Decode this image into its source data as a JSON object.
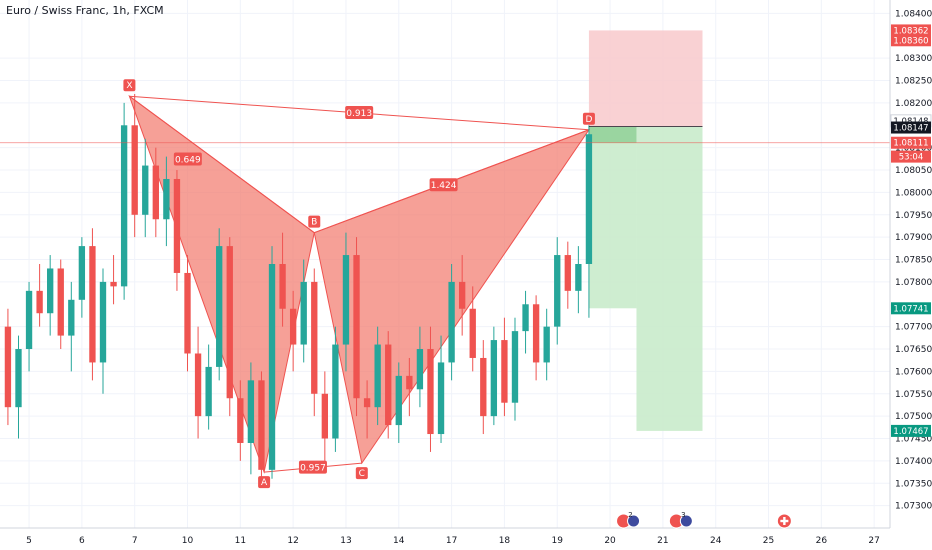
{
  "header": {
    "symbol_title": "Euro / Swiss Franc, 1h, FXCM"
  },
  "colors": {
    "up": "#26a69a",
    "down": "#ef5350",
    "pattern_fill": "#f2786b",
    "pattern_line": "#ef5350",
    "stop_zone": "#f8c9cb",
    "target_zone": "#c9ebcb",
    "entry_zone": "#9ad5a0",
    "grid": "#f0f3fa"
  },
  "chart_data": {
    "type": "candlestick",
    "title": "Euro / Swiss Franc, 1h, FXCM",
    "ylim": [
      1.0725,
      1.0843
    ],
    "y_ticks": [
      "1.08400",
      "1.08300",
      "1.08250",
      "1.08200",
      "1.08100",
      "1.08050",
      "1.08000",
      "1.07950",
      "1.07900",
      "1.07850",
      "1.07800",
      "1.07700",
      "1.07650",
      "1.07600",
      "1.07550",
      "1.07500",
      "1.07450",
      "1.07400",
      "1.07350",
      "1.07300"
    ],
    "x_ticks": [
      {
        "label": "5",
        "x": 5
      },
      {
        "label": "6",
        "x": 6
      },
      {
        "label": "7",
        "x": 7
      },
      {
        "label": "10",
        "x": 8
      },
      {
        "label": "11",
        "x": 9
      },
      {
        "label": "12",
        "x": 10
      },
      {
        "label": "13",
        "x": 11
      },
      {
        "label": "14",
        "x": 12
      },
      {
        "label": "17",
        "x": 13
      },
      {
        "label": "18",
        "x": 14
      },
      {
        "label": "19",
        "x": 15
      },
      {
        "label": "20",
        "x": 16
      },
      {
        "label": "21",
        "x": 17
      },
      {
        "label": "24",
        "x": 18
      },
      {
        "label": "25",
        "x": 19
      },
      {
        "label": "26",
        "x": 20
      },
      {
        "label": "27",
        "x": 21
      }
    ],
    "grid": true,
    "candles": [
      {
        "d": 4.6,
        "o": 1.077,
        "h": 1.0774,
        "l": 1.0748,
        "c": 1.0752
      },
      {
        "d": 4.8,
        "o": 1.0752,
        "h": 1.0768,
        "l": 1.0745,
        "c": 1.0765
      },
      {
        "d": 5.0,
        "o": 1.0765,
        "h": 1.078,
        "l": 1.076,
        "c": 1.0778
      },
      {
        "d": 5.2,
        "o": 1.0778,
        "h": 1.0784,
        "l": 1.077,
        "c": 1.0773
      },
      {
        "d": 5.4,
        "o": 1.0773,
        "h": 1.0786,
        "l": 1.0768,
        "c": 1.0783
      },
      {
        "d": 5.6,
        "o": 1.0783,
        "h": 1.0785,
        "l": 1.0765,
        "c": 1.0768
      },
      {
        "d": 5.8,
        "o": 1.0768,
        "h": 1.078,
        "l": 1.076,
        "c": 1.0776
      },
      {
        "d": 6.0,
        "o": 1.0776,
        "h": 1.079,
        "l": 1.0772,
        "c": 1.0788
      },
      {
        "d": 6.2,
        "o": 1.0788,
        "h": 1.0792,
        "l": 1.0758,
        "c": 1.0762
      },
      {
        "d": 6.4,
        "o": 1.0762,
        "h": 1.0783,
        "l": 1.0755,
        "c": 1.078
      },
      {
        "d": 6.6,
        "o": 1.078,
        "h": 1.0786,
        "l": 1.0775,
        "c": 1.0779
      },
      {
        "d": 6.8,
        "o": 1.0779,
        "h": 1.082,
        "l": 1.0776,
        "c": 1.0815
      },
      {
        "d": 7.0,
        "o": 1.0815,
        "h": 1.0822,
        "l": 1.079,
        "c": 1.0795
      },
      {
        "d": 7.2,
        "o": 1.0795,
        "h": 1.0812,
        "l": 1.079,
        "c": 1.0806
      },
      {
        "d": 7.4,
        "o": 1.0806,
        "h": 1.081,
        "l": 1.079,
        "c": 1.0794
      },
      {
        "d": 7.6,
        "o": 1.0794,
        "h": 1.0808,
        "l": 1.0788,
        "c": 1.0803
      },
      {
        "d": 7.8,
        "o": 1.0803,
        "h": 1.0805,
        "l": 1.0778,
        "c": 1.0782
      },
      {
        "d": 8.0,
        "o": 1.0782,
        "h": 1.0786,
        "l": 1.076,
        "c": 1.0764
      },
      {
        "d": 8.2,
        "o": 1.0764,
        "h": 1.077,
        "l": 1.0745,
        "c": 1.075
      },
      {
        "d": 8.4,
        "o": 1.075,
        "h": 1.0766,
        "l": 1.0747,
        "c": 1.0761
      },
      {
        "d": 8.6,
        "o": 1.0761,
        "h": 1.0792,
        "l": 1.0758,
        "c": 1.0788
      },
      {
        "d": 8.8,
        "o": 1.0788,
        "h": 1.079,
        "l": 1.075,
        "c": 1.0754
      },
      {
        "d": 9.0,
        "o": 1.0754,
        "h": 1.0758,
        "l": 1.074,
        "c": 1.0744
      },
      {
        "d": 9.2,
        "o": 1.0744,
        "h": 1.0762,
        "l": 1.0737,
        "c": 1.0758
      },
      {
        "d": 9.4,
        "o": 1.0758,
        "h": 1.076,
        "l": 1.0735,
        "c": 1.0738
      },
      {
        "d": 9.6,
        "o": 1.0738,
        "h": 1.0788,
        "l": 1.0736,
        "c": 1.0784
      },
      {
        "d": 9.8,
        "o": 1.0784,
        "h": 1.0791,
        "l": 1.077,
        "c": 1.0774
      },
      {
        "d": 10.0,
        "o": 1.0774,
        "h": 1.0778,
        "l": 1.076,
        "c": 1.0766
      },
      {
        "d": 10.2,
        "o": 1.0766,
        "h": 1.0785,
        "l": 1.0762,
        "c": 1.078
      },
      {
        "d": 10.4,
        "o": 1.078,
        "h": 1.0783,
        "l": 1.075,
        "c": 1.0755
      },
      {
        "d": 10.6,
        "o": 1.0755,
        "h": 1.076,
        "l": 1.074,
        "c": 1.0745
      },
      {
        "d": 10.8,
        "o": 1.0745,
        "h": 1.077,
        "l": 1.0742,
        "c": 1.0766
      },
      {
        "d": 11.0,
        "o": 1.0766,
        "h": 1.0791,
        "l": 1.076,
        "c": 1.0786
      },
      {
        "d": 11.2,
        "o": 1.0786,
        "h": 1.079,
        "l": 1.075,
        "c": 1.0754
      },
      {
        "d": 11.4,
        "o": 1.0754,
        "h": 1.0758,
        "l": 1.0745,
        "c": 1.0752
      },
      {
        "d": 11.6,
        "o": 1.0752,
        "h": 1.077,
        "l": 1.0748,
        "c": 1.0766
      },
      {
        "d": 11.8,
        "o": 1.0766,
        "h": 1.0769,
        "l": 1.0745,
        "c": 1.0748
      },
      {
        "d": 12.0,
        "o": 1.0748,
        "h": 1.0762,
        "l": 1.0744,
        "c": 1.0759
      },
      {
        "d": 12.2,
        "o": 1.0759,
        "h": 1.0763,
        "l": 1.075,
        "c": 1.0756
      },
      {
        "d": 12.4,
        "o": 1.0756,
        "h": 1.077,
        "l": 1.0752,
        "c": 1.0765
      },
      {
        "d": 12.6,
        "o": 1.0765,
        "h": 1.077,
        "l": 1.0742,
        "c": 1.0746
      },
      {
        "d": 12.8,
        "o": 1.0746,
        "h": 1.0768,
        "l": 1.0744,
        "c": 1.0762
      },
      {
        "d": 13.0,
        "o": 1.0762,
        "h": 1.0784,
        "l": 1.0758,
        "c": 1.078
      },
      {
        "d": 13.2,
        "o": 1.078,
        "h": 1.0786,
        "l": 1.0768,
        "c": 1.0774
      },
      {
        "d": 13.4,
        "o": 1.0774,
        "h": 1.0779,
        "l": 1.076,
        "c": 1.0763
      },
      {
        "d": 13.6,
        "o": 1.0763,
        "h": 1.0767,
        "l": 1.0746,
        "c": 1.075
      },
      {
        "d": 13.8,
        "o": 1.075,
        "h": 1.077,
        "l": 1.0748,
        "c": 1.0767
      },
      {
        "d": 14.0,
        "o": 1.0767,
        "h": 1.0772,
        "l": 1.075,
        "c": 1.0753
      },
      {
        "d": 14.2,
        "o": 1.0753,
        "h": 1.0772,
        "l": 1.0749,
        "c": 1.0769
      },
      {
        "d": 14.4,
        "o": 1.0769,
        "h": 1.0778,
        "l": 1.0764,
        "c": 1.0775
      },
      {
        "d": 14.6,
        "o": 1.0775,
        "h": 1.0777,
        "l": 1.0758,
        "c": 1.0762
      },
      {
        "d": 14.8,
        "o": 1.0762,
        "h": 1.0774,
        "l": 1.0758,
        "c": 1.077
      },
      {
        "d": 15.0,
        "o": 1.077,
        "h": 1.079,
        "l": 1.0766,
        "c": 1.0786
      },
      {
        "d": 15.2,
        "o": 1.0786,
        "h": 1.0789,
        "l": 1.0774,
        "c": 1.0778
      },
      {
        "d": 15.4,
        "o": 1.0778,
        "h": 1.0788,
        "l": 1.0773,
        "c": 1.0784
      },
      {
        "d": 15.6,
        "o": 1.0784,
        "h": 1.0815,
        "l": 1.0772,
        "c": 1.0813
      }
    ],
    "pattern": {
      "points": [
        {
          "label": "X",
          "d": 6.9,
          "p": 1.08215
        },
        {
          "label": "A",
          "d": 9.45,
          "p": 1.07375
        },
        {
          "label": "B",
          "d": 10.4,
          "p": 1.0791
        },
        {
          "label": "C",
          "d": 11.3,
          "p": 1.07395
        },
        {
          "label": "D",
          "d": 15.6,
          "p": 1.0814
        }
      ],
      "ratios": [
        {
          "label": "0.649",
          "between": [
            "X",
            "B"
          ]
        },
        {
          "label": "0.957",
          "between": [
            "A",
            "C"
          ]
        },
        {
          "label": "1.424",
          "between": [
            "B",
            "D"
          ]
        },
        {
          "label": "0.913",
          "between": [
            "X",
            "D"
          ]
        }
      ]
    },
    "position": {
      "entry": 1.08147,
      "stop": 1.08362,
      "target1": 1.07741,
      "target2": 1.07467,
      "start_d": 15.6,
      "end_d": 17.75,
      "entry_split_d": 16.5
    },
    "price_labels": [
      {
        "text": "1.08362",
        "p": 1.08362,
        "color": "#ef5350"
      },
      {
        "text": "1.08360",
        "p": 1.0834,
        "color": "#ef5350"
      },
      {
        "text": "1.08148",
        "p": 1.0816,
        "color": "#ffffff",
        "text_color": "#131722"
      },
      {
        "text": "1.08147",
        "p": 1.08145,
        "color": "#131722"
      },
      {
        "text": "1.08111",
        "p": 1.08111,
        "color": "#ef5350"
      },
      {
        "text": "53:04",
        "p": 1.0808,
        "color": "#ef5350"
      },
      {
        "text": "1.07741",
        "p": 1.07741,
        "color": "#089981"
      },
      {
        "text": "1.07467",
        "p": 1.07467,
        "color": "#089981"
      }
    ],
    "current_price": 1.08111,
    "event_icons": [
      {
        "d": 16.35,
        "kind": "flag-group",
        "count": "2"
      },
      {
        "d": 17.35,
        "kind": "flag-group",
        "count": "3"
      },
      {
        "d": 19.3,
        "kind": "swiss-flag"
      }
    ]
  }
}
